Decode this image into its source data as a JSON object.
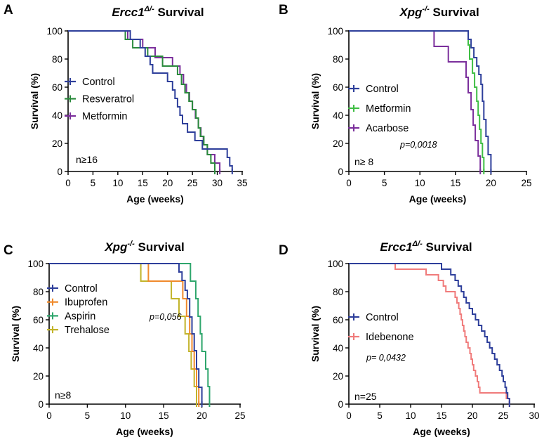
{
  "chart_data": [
    {
      "id": "A",
      "type": "line",
      "panel_label": "A",
      "title": {
        "prefix": "Ercc1",
        "sup": "Δ/-",
        "suffix": " Survival"
      },
      "xlabel": "Age (weeks)",
      "ylabel": "Survival (%)",
      "xlim": [
        0,
        35
      ],
      "ylim": [
        0,
        100
      ],
      "xticks": [
        0,
        5,
        10,
        15,
        20,
        25,
        30,
        35
      ],
      "yticks": [
        0,
        20,
        40,
        60,
        80,
        100
      ],
      "note": "n≥16",
      "pvalue": "",
      "series": [
        {
          "name": "Control",
          "color": "#2e3f9b",
          "steps": [
            [
              0,
              100
            ],
            [
              12.5,
              94
            ],
            [
              14.5,
              88
            ],
            [
              15.5,
              82
            ],
            [
              16.5,
              76
            ],
            [
              17,
              70
            ],
            [
              20,
              64
            ],
            [
              21,
              58
            ],
            [
              21.5,
              52
            ],
            [
              22,
              46
            ],
            [
              22.5,
              40
            ],
            [
              23,
              34
            ],
            [
              24,
              28
            ],
            [
              25.5,
              22
            ],
            [
              27,
              16
            ],
            [
              32,
              10
            ],
            [
              32.5,
              4
            ],
            [
              33,
              0
            ]
          ]
        },
        {
          "name": "Resveratrol",
          "color": "#2a8a3c",
          "steps": [
            [
              0,
              100
            ],
            [
              11.5,
              94
            ],
            [
              13,
              88
            ],
            [
              16,
              82
            ],
            [
              19,
              75
            ],
            [
              22,
              69
            ],
            [
              22.8,
              62
            ],
            [
              23.5,
              56
            ],
            [
              24.3,
              50
            ],
            [
              25,
              44
            ],
            [
              25.7,
              38
            ],
            [
              26.2,
              31
            ],
            [
              26.6,
              25
            ],
            [
              27.3,
              19
            ],
            [
              28,
              12
            ],
            [
              28.7,
              6
            ],
            [
              29.5,
              0
            ]
          ]
        },
        {
          "name": "Metformin",
          "color": "#7b2f9c",
          "steps": [
            [
              0,
              100
            ],
            [
              12,
              94
            ],
            [
              15,
              88
            ],
            [
              17.5,
              81
            ],
            [
              21,
              75
            ],
            [
              22.5,
              69
            ],
            [
              23.2,
              62
            ],
            [
              23.8,
              56
            ],
            [
              24.4,
              50
            ],
            [
              25,
              44
            ],
            [
              25.6,
              38
            ],
            [
              26.2,
              31
            ],
            [
              26.7,
              25
            ],
            [
              27.2,
              19
            ],
            [
              28,
              12
            ],
            [
              29.5,
              6
            ],
            [
              30.5,
              0
            ]
          ]
        }
      ]
    },
    {
      "id": "B",
      "type": "line",
      "panel_label": "B",
      "title": {
        "prefix": "Xpg",
        "sup": "-/-",
        "suffix": " Survival"
      },
      "xlabel": "Age (weeks)",
      "ylabel": "Survival (%)",
      "xlim": [
        0,
        25
      ],
      "ylim": [
        0,
        100
      ],
      "xticks": [
        0,
        5,
        10,
        15,
        20,
        25
      ],
      "yticks": [
        0,
        20,
        40,
        60,
        80,
        100
      ],
      "note": "n≥ 8",
      "pvalue": "p=0,0018",
      "series": [
        {
          "name": "Control",
          "color": "#2e3f9b",
          "steps": [
            [
              0,
              100
            ],
            [
              16.8,
              94
            ],
            [
              17.2,
              88
            ],
            [
              17.6,
              81
            ],
            [
              18,
              75
            ],
            [
              18.3,
              69
            ],
            [
              18.6,
              62
            ],
            [
              18.8,
              50
            ],
            [
              19,
              37
            ],
            [
              19.3,
              25
            ],
            [
              19.6,
              12
            ],
            [
              20,
              0
            ]
          ]
        },
        {
          "name": "Metformin",
          "color": "#3fbe44",
          "steps": [
            [
              0,
              100
            ],
            [
              16.8,
              90
            ],
            [
              17,
              80
            ],
            [
              17.4,
              70
            ],
            [
              17.7,
              60
            ],
            [
              18,
              50
            ],
            [
              18.2,
              40
            ],
            [
              18.4,
              30
            ],
            [
              18.6,
              20
            ],
            [
              18.8,
              10
            ],
            [
              19,
              0
            ]
          ]
        },
        {
          "name": "Acarbose",
          "color": "#7b2f9c",
          "steps": [
            [
              0,
              100
            ],
            [
              12,
              89
            ],
            [
              14,
              78
            ],
            [
              16.5,
              67
            ],
            [
              16.8,
              56
            ],
            [
              17.2,
              44
            ],
            [
              17.5,
              33
            ],
            [
              17.8,
              22
            ],
            [
              18.2,
              11
            ],
            [
              18.5,
              0
            ]
          ]
        }
      ]
    },
    {
      "id": "C",
      "type": "line",
      "panel_label": "C",
      "title": {
        "prefix": "Xpg",
        "sup": "-/-",
        "suffix": " Survival"
      },
      "xlabel": "Age (weeks)",
      "ylabel": "Survival (%)",
      "xlim": [
        0,
        25
      ],
      "ylim": [
        0,
        100
      ],
      "xticks": [
        0,
        5,
        10,
        15,
        20,
        25
      ],
      "yticks": [
        0,
        20,
        40,
        60,
        80,
        100
      ],
      "note": "n≥8",
      "pvalue": "p=0,056",
      "series": [
        {
          "name": "Control",
          "color": "#2e3f9b",
          "steps": [
            [
              0,
              100
            ],
            [
              17,
              94
            ],
            [
              17.4,
              88
            ],
            [
              17.8,
              81
            ],
            [
              18.1,
              75
            ],
            [
              18.4,
              62
            ],
            [
              18.7,
              50
            ],
            [
              19,
              38
            ],
            [
              19.3,
              25
            ],
            [
              19.6,
              12
            ],
            [
              20,
              0
            ]
          ]
        },
        {
          "name": "Ibuprofen",
          "color": "#f08a2c",
          "steps": [
            [
              0,
              100
            ],
            [
              13,
              87.5
            ],
            [
              17.5,
              75
            ],
            [
              18,
              62.5
            ],
            [
              18.4,
              50
            ],
            [
              18.7,
              37.5
            ],
            [
              19,
              25
            ],
            [
              19.3,
              12.5
            ],
            [
              19.6,
              0
            ]
          ]
        },
        {
          "name": "Aspirin",
          "color": "#2ea66c",
          "steps": [
            [
              0,
              100
            ],
            [
              18.5,
              87.5
            ],
            [
              19.2,
              75
            ],
            [
              19.5,
              62.5
            ],
            [
              19.8,
              50
            ],
            [
              20,
              37.5
            ],
            [
              20.5,
              25
            ],
            [
              20.8,
              12.5
            ],
            [
              21,
              0
            ]
          ]
        },
        {
          "name": "Trehalose",
          "color": "#c2b42a",
          "steps": [
            [
              0,
              100
            ],
            [
              12,
              87.5
            ],
            [
              16,
              75
            ],
            [
              17,
              62.5
            ],
            [
              17.8,
              50
            ],
            [
              18.3,
              37.5
            ],
            [
              18.6,
              25
            ],
            [
              19,
              12.5
            ],
            [
              19.3,
              0
            ]
          ]
        }
      ]
    },
    {
      "id": "D",
      "type": "line",
      "panel_label": "D",
      "title": {
        "prefix": "Ercc1",
        "sup": "Δ/-",
        "suffix": " Survival"
      },
      "xlabel": "Age (weeks)",
      "ylabel": "Survival (%)",
      "xlim": [
        0,
        30
      ],
      "ylim": [
        0,
        100
      ],
      "xticks": [
        0,
        5,
        10,
        15,
        20,
        25,
        30
      ],
      "yticks": [
        0,
        20,
        40,
        60,
        80,
        100
      ],
      "note": "n=25",
      "pvalue": "p= 0,0432",
      "series": [
        {
          "name": "Control",
          "color": "#2e3f9b",
          "steps": [
            [
              0,
              100
            ],
            [
              15,
              96
            ],
            [
              16.5,
              92
            ],
            [
              17.2,
              88
            ],
            [
              17.7,
              84
            ],
            [
              18.2,
              80
            ],
            [
              18.6,
              76
            ],
            [
              19,
              72
            ],
            [
              19.5,
              68
            ],
            [
              20,
              64
            ],
            [
              20.5,
              60
            ],
            [
              21,
              56
            ],
            [
              21.5,
              52
            ],
            [
              22,
              48
            ],
            [
              22.4,
              44
            ],
            [
              22.8,
              40
            ],
            [
              23.2,
              36
            ],
            [
              23.6,
              32
            ],
            [
              24,
              28
            ],
            [
              24.4,
              24
            ],
            [
              24.8,
              20
            ],
            [
              25,
              16
            ],
            [
              25.3,
              12
            ],
            [
              25.5,
              8
            ],
            [
              25.7,
              4
            ],
            [
              26,
              0
            ]
          ]
        },
        {
          "name": "Idebenone",
          "color": "#f07b7b",
          "steps": [
            [
              0,
              100
            ],
            [
              7.5,
              96
            ],
            [
              12.5,
              92
            ],
            [
              14.5,
              88
            ],
            [
              15.3,
              84
            ],
            [
              15.7,
              80
            ],
            [
              17.2,
              76
            ],
            [
              17.5,
              72
            ],
            [
              17.8,
              68
            ],
            [
              18,
              64
            ],
            [
              18.2,
              60
            ],
            [
              18.4,
              56
            ],
            [
              18.6,
              52
            ],
            [
              18.8,
              48
            ],
            [
              19,
              44
            ],
            [
              19.3,
              40
            ],
            [
              19.6,
              36
            ],
            [
              19.8,
              32
            ],
            [
              20,
              28
            ],
            [
              20.2,
              24
            ],
            [
              20.5,
              20
            ],
            [
              20.8,
              16
            ],
            [
              21,
              12
            ],
            [
              21.2,
              8
            ],
            [
              25.5,
              4
            ],
            [
              26,
              0
            ]
          ]
        }
      ]
    }
  ]
}
